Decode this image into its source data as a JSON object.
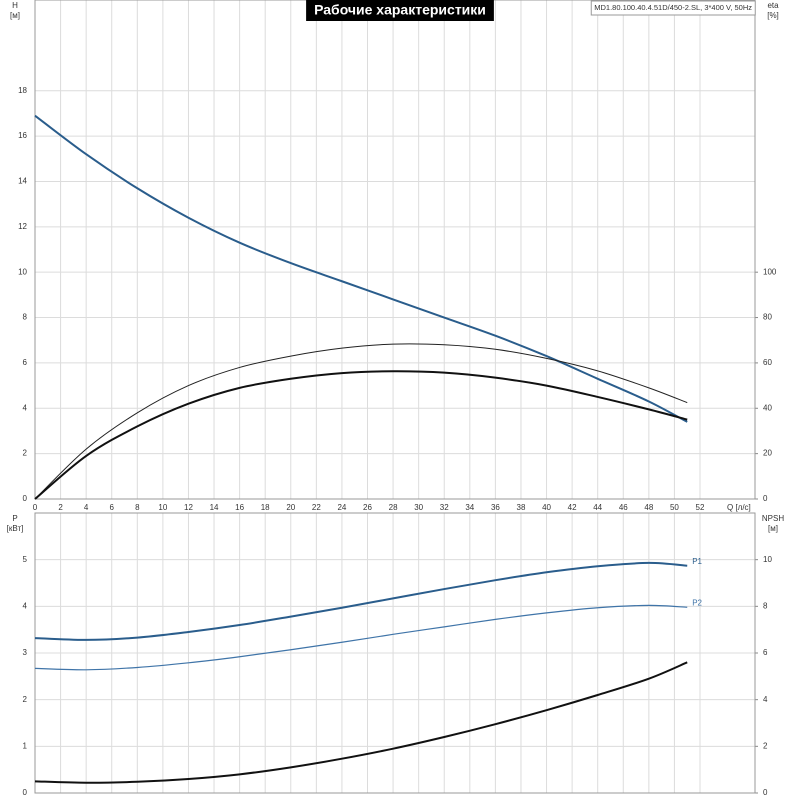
{
  "chart_data": [
    {
      "type": "line",
      "title": "Рабочие характеристики",
      "subtitle": "MD1.80.100.40.4.51D/450-2.SL, 3*400 V, 50Hz",
      "x_label": "Q [л/с]",
      "y_label": "H",
      "y_unit": "[м]",
      "y2_label": "eta",
      "y2_unit": "[%]",
      "x": [
        0,
        4,
        8,
        12,
        16,
        20,
        24,
        28,
        32,
        36,
        40,
        44,
        48,
        51
      ],
      "xlim": [
        0,
        56.3
      ],
      "xticks": [
        0,
        2,
        4,
        6,
        8,
        10,
        12,
        14,
        16,
        18,
        20,
        22,
        24,
        26,
        28,
        30,
        32,
        34,
        36,
        38,
        40,
        42,
        44,
        46,
        48,
        50,
        52
      ],
      "ylim": [
        0,
        22
      ],
      "yticks": [
        0,
        2,
        4,
        6,
        8,
        10,
        12,
        14,
        16,
        18
      ],
      "y2lim": [
        0,
        220
      ],
      "y2ticks": [
        0,
        20,
        40,
        60,
        80,
        100
      ],
      "grid": true,
      "series": [
        {
          "color": "#2a5d8c",
          "width": 2,
          "values": [
            16.9,
            15.2,
            13.7,
            12.4,
            11.3,
            10.4,
            9.6,
            8.8,
            8.0,
            7.2,
            6.3,
            5.3,
            4.3,
            3.4
          ]
        },
        {
          "color": "#222222",
          "width": 1,
          "axis": "y2",
          "values": [
            0,
            22,
            38,
            50,
            58,
            63,
            66.5,
            68.3,
            68,
            66,
            62,
            56.5,
            49,
            42.5
          ]
        },
        {
          "color": "#111111",
          "width": 2,
          "axis": "y2",
          "values": [
            0,
            19,
            32,
            42,
            49,
            53,
            55.5,
            56.3,
            55.7,
            53.5,
            50,
            45,
            39.5,
            35
          ]
        }
      ]
    },
    {
      "type": "line",
      "y_label": "P",
      "y_unit": "[кВт]",
      "y2_label": "NPSH",
      "y2_unit": "[м]",
      "x": [
        0,
        4,
        8,
        12,
        16,
        20,
        24,
        28,
        32,
        36,
        40,
        44,
        48,
        51
      ],
      "xlim": [
        0,
        56.3
      ],
      "ylim": [
        0,
        6
      ],
      "yticks": [
        0,
        1,
        2,
        3,
        4,
        5
      ],
      "y2lim": [
        0,
        12
      ],
      "y2ticks": [
        0,
        2,
        4,
        6,
        8,
        10
      ],
      "grid": true,
      "series": [
        {
          "name": "P1",
          "color": "#2a5d8c",
          "width": 2,
          "values": [
            3.32,
            3.28,
            3.33,
            3.45,
            3.6,
            3.78,
            3.97,
            4.17,
            4.37,
            4.56,
            4.73,
            4.86,
            4.93,
            4.87
          ]
        },
        {
          "name": "P2",
          "color": "#3f74a8",
          "width": 1.2,
          "values": [
            2.67,
            2.64,
            2.69,
            2.79,
            2.92,
            3.07,
            3.23,
            3.4,
            3.56,
            3.72,
            3.86,
            3.97,
            4.02,
            3.98
          ]
        },
        {
          "color": "#111111",
          "width": 2,
          "axis": "y2",
          "values": [
            0.5,
            0.44,
            0.48,
            0.6,
            0.8,
            1.1,
            1.47,
            1.9,
            2.4,
            2.95,
            3.55,
            4.2,
            4.9,
            5.6
          ]
        }
      ]
    }
  ]
}
